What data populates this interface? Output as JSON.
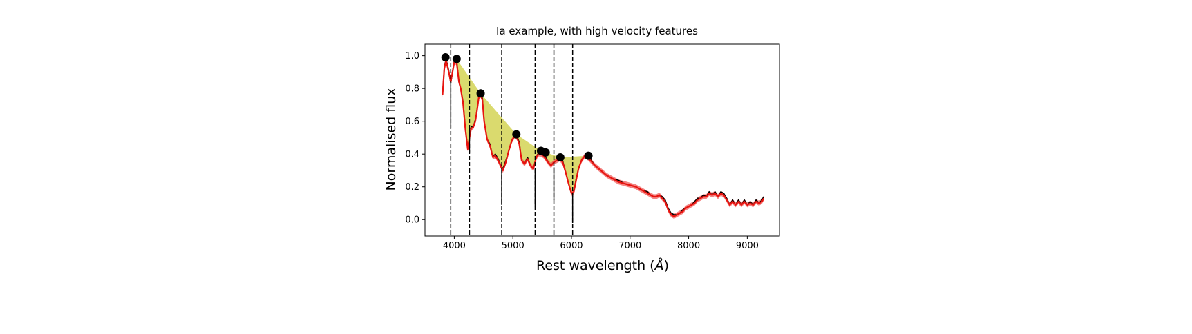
{
  "chart_data": {
    "type": "line",
    "title": "Ia example, with high velocity features",
    "xlabel": "Rest wavelength (",
    "xlabel_unit": "Å",
    "xlabel_close": ")",
    "ylabel": "Normalised flux",
    "xlim": [
      3500,
      9550
    ],
    "ylim": [
      -0.1,
      1.07
    ],
    "xticks": [
      4000,
      5000,
      6000,
      7000,
      8000,
      9000
    ],
    "yticks": [
      0.0,
      0.2,
      0.4,
      0.6,
      0.8,
      1.0
    ],
    "xtick_labels": [
      "4000",
      "5000",
      "6000",
      "7000",
      "8000",
      "9000"
    ],
    "ytick_labels": [
      "0.0",
      "0.2",
      "0.4",
      "0.6",
      "0.8",
      "1.0"
    ],
    "grid": false,
    "colors": {
      "spectrum": "#000000",
      "fit": "#e8140f",
      "fit_band": "#f05a58",
      "pseudo_eqw_fill": "#d4d455",
      "markers": "#000000",
      "vlines": "#000000"
    },
    "spectrum": {
      "x": [
        3800,
        3830,
        3860,
        3900,
        3940,
        3970,
        4000,
        4040,
        4080,
        4110,
        4150,
        4190,
        4230,
        4260,
        4290,
        4320,
        4360,
        4390,
        4420,
        4450,
        4480,
        4510,
        4560,
        4610,
        4660,
        4700,
        4750,
        4790,
        4830,
        4880,
        4930,
        4980,
        5030,
        5070,
        5110,
        5150,
        5200,
        5250,
        5300,
        5350,
        5400,
        5440,
        5470,
        5520,
        5560,
        5600,
        5650,
        5700,
        5750,
        5800,
        5850,
        5900,
        5950,
        6000,
        6040,
        6080,
        6120,
        6170,
        6230,
        6300,
        6400,
        6500,
        6600,
        6700,
        6800,
        6900,
        7000,
        7100,
        7200,
        7300,
        7350,
        7400,
        7450,
        7500,
        7550,
        7600,
        7650,
        7700,
        7750,
        7800,
        7850,
        7900,
        7950,
        8000,
        8050,
        8100,
        8150,
        8200,
        8250,
        8300,
        8350,
        8400,
        8450,
        8500,
        8550,
        8600,
        8650,
        8700,
        8750,
        8800,
        8850,
        8900,
        8950,
        9000,
        9050,
        9100,
        9150,
        9200,
        9250,
        9280
      ],
      "y": [
        0.76,
        0.93,
        0.98,
        0.92,
        0.83,
        0.9,
        0.97,
        0.97,
        0.84,
        0.8,
        0.72,
        0.55,
        0.44,
        0.5,
        0.57,
        0.56,
        0.61,
        0.67,
        0.75,
        0.77,
        0.74,
        0.6,
        0.49,
        0.46,
        0.38,
        0.4,
        0.37,
        0.33,
        0.31,
        0.36,
        0.42,
        0.48,
        0.51,
        0.51,
        0.47,
        0.36,
        0.34,
        0.38,
        0.33,
        0.31,
        0.38,
        0.41,
        0.41,
        0.4,
        0.38,
        0.35,
        0.33,
        0.35,
        0.36,
        0.38,
        0.36,
        0.29,
        0.22,
        0.16,
        0.17,
        0.25,
        0.31,
        0.36,
        0.39,
        0.38,
        0.33,
        0.3,
        0.27,
        0.25,
        0.24,
        0.22,
        0.21,
        0.2,
        0.18,
        0.17,
        0.15,
        0.14,
        0.14,
        0.15,
        0.14,
        0.12,
        0.07,
        0.04,
        0.03,
        0.03,
        0.04,
        0.06,
        0.07,
        0.08,
        0.09,
        0.11,
        0.13,
        0.13,
        0.15,
        0.14,
        0.17,
        0.15,
        0.17,
        0.14,
        0.17,
        0.16,
        0.13,
        0.09,
        0.12,
        0.09,
        0.12,
        0.09,
        0.12,
        0.09,
        0.11,
        0.09,
        0.12,
        0.1,
        0.12,
        0.14
      ]
    },
    "fit": {
      "x": [
        3800,
        3830,
        3860,
        3900,
        3940,
        3970,
        4000,
        4040,
        4080,
        4110,
        4150,
        4190,
        4230,
        4260,
        4290,
        4320,
        4360,
        4390,
        4420,
        4450,
        4480,
        4510,
        4560,
        4610,
        4660,
        4700,
        4750,
        4790,
        4830,
        4880,
        4930,
        4980,
        5030,
        5070,
        5110,
        5150,
        5200,
        5250,
        5300,
        5350,
        5400,
        5440,
        5470,
        5520,
        5560,
        5600,
        5650,
        5700,
        5750,
        5800,
        5850,
        5900,
        5950,
        6000,
        6040,
        6080,
        6120,
        6170,
        6230,
        6300,
        6400,
        6500,
        6600,
        6700,
        6800,
        6900,
        7000,
        7100,
        7200,
        7300,
        7350,
        7400,
        7450,
        7500,
        7550,
        7600,
        7650,
        7700,
        7750,
        7800,
        7850,
        7900,
        7950,
        8000,
        8050,
        8100,
        8150,
        8200,
        8250,
        8300,
        8350,
        8400,
        8450,
        8500,
        8550,
        8600,
        8650,
        8700,
        8750,
        8800,
        8850,
        8900,
        8950,
        9000,
        9050,
        9100,
        9150,
        9200,
        9250,
        9280
      ],
      "y": [
        0.76,
        0.92,
        0.97,
        0.91,
        0.84,
        0.9,
        0.96,
        0.96,
        0.84,
        0.8,
        0.71,
        0.55,
        0.43,
        0.5,
        0.56,
        0.56,
        0.6,
        0.67,
        0.75,
        0.76,
        0.73,
        0.6,
        0.49,
        0.45,
        0.38,
        0.39,
        0.36,
        0.33,
        0.3,
        0.35,
        0.42,
        0.48,
        0.51,
        0.5,
        0.46,
        0.36,
        0.34,
        0.37,
        0.33,
        0.31,
        0.38,
        0.4,
        0.4,
        0.39,
        0.37,
        0.35,
        0.33,
        0.35,
        0.36,
        0.37,
        0.35,
        0.29,
        0.22,
        0.16,
        0.17,
        0.24,
        0.31,
        0.36,
        0.39,
        0.37,
        0.33,
        0.3,
        0.27,
        0.25,
        0.23,
        0.22,
        0.21,
        0.2,
        0.18,
        0.16,
        0.15,
        0.14,
        0.14,
        0.15,
        0.13,
        0.11,
        0.06,
        0.03,
        0.02,
        0.03,
        0.04,
        0.05,
        0.07,
        0.08,
        0.09,
        0.1,
        0.12,
        0.13,
        0.14,
        0.14,
        0.16,
        0.15,
        0.16,
        0.14,
        0.16,
        0.15,
        0.12,
        0.09,
        0.11,
        0.09,
        0.11,
        0.09,
        0.11,
        0.09,
        0.1,
        0.09,
        0.11,
        0.1,
        0.11,
        0.13
      ],
      "band": 0.015
    },
    "markers": {
      "x": [
        3850,
        4040,
        4450,
        5060,
        5480,
        5560,
        5810,
        6290
      ],
      "y": [
        0.99,
        0.98,
        0.77,
        0.52,
        0.42,
        0.41,
        0.38,
        0.39
      ]
    },
    "filled_regions": [
      {
        "x_start": 4040,
        "x_end": 4450,
        "y_start": 0.98,
        "y_end": 0.77
      },
      {
        "x_start": 4450,
        "x_end": 5060,
        "y_start": 0.77,
        "y_end": 0.52
      },
      {
        "x_start": 5060,
        "x_end": 5480,
        "y_start": 0.52,
        "y_end": 0.42
      },
      {
        "x_start": 5560,
        "x_end": 5810,
        "y_start": 0.41,
        "y_end": 0.38
      },
      {
        "x_start": 5810,
        "x_end": 6290,
        "y_start": 0.38,
        "y_end": 0.39
      }
    ],
    "dashed_vlines": [
      3940,
      4260,
      4810,
      5380,
      5700,
      6020
    ],
    "solid_segments": [
      {
        "x": 3940,
        "y_from": 0.56,
        "y_to": 0.82
      },
      {
        "x": 4260,
        "y_from": 0.41,
        "y_to": 0.56
      },
      {
        "x": 4810,
        "y_from": 0.09,
        "y_to": 0.3
      },
      {
        "x": 5380,
        "y_from": 0.08,
        "y_to": 0.31
      },
      {
        "x": 5700,
        "y_from": 0.12,
        "y_to": 0.32
      },
      {
        "x": 6020,
        "y_from": -0.02,
        "y_to": 0.16
      }
    ]
  }
}
